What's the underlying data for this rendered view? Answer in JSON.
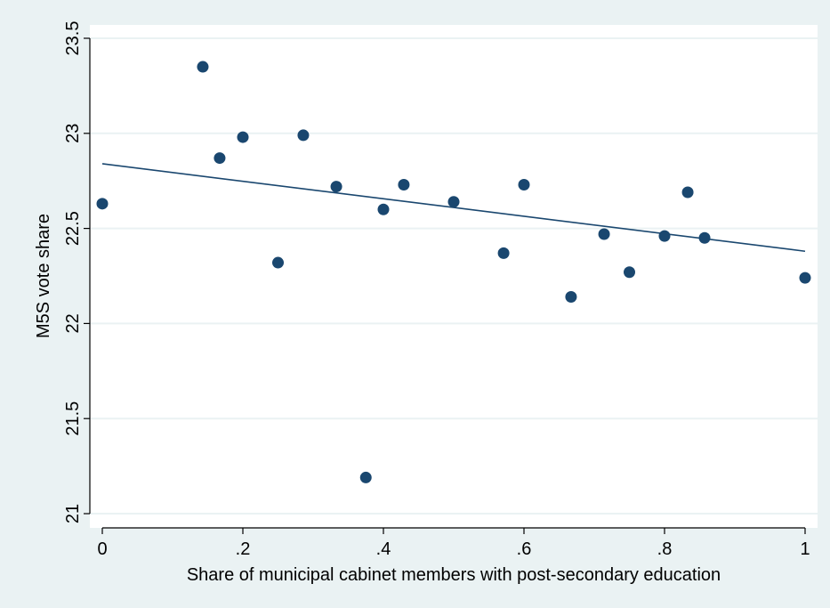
{
  "chart_data": {
    "type": "scatter",
    "title": "",
    "xlabel": "Share of municipal cabinet members with post-secondary education",
    "ylabel": "M5S vote share",
    "xlim": [
      0,
      1
    ],
    "ylim": [
      21,
      23.5
    ],
    "x_ticks": [
      0,
      0.2,
      0.4,
      0.6,
      0.8,
      1
    ],
    "x_tick_labels": [
      "0",
      ".2",
      ".4",
      ".6",
      ".8",
      "1"
    ],
    "y_ticks": [
      21,
      21.5,
      22,
      22.5,
      23,
      23.5
    ],
    "y_tick_labels": [
      "21",
      "21.5",
      "22",
      "22.5",
      "23",
      "23.5"
    ],
    "grid": "horizontal",
    "legend": "none",
    "colors": {
      "marker": "#1a476f",
      "fit_line": "#1a476f",
      "plot_bg": "#ffffff",
      "outer_bg": "#eaf2f3",
      "grid": "#eaf2f3"
    },
    "series": [
      {
        "kind": "points",
        "x": [
          0,
          0.143,
          0.167,
          0.2,
          0.25,
          0.286,
          0.333,
          0.375,
          0.4,
          0.429,
          0.5,
          0.571,
          0.6,
          0.667,
          0.714,
          0.75,
          0.8,
          0.833,
          0.857,
          1
        ],
        "y": [
          22.63,
          23.35,
          22.87,
          22.98,
          22.32,
          22.99,
          22.72,
          21.19,
          22.6,
          22.73,
          22.64,
          22.37,
          22.73,
          22.14,
          22.47,
          22.27,
          22.46,
          22.69,
          22.45,
          22.24
        ]
      },
      {
        "kind": "fit",
        "x": [
          0,
          1
        ],
        "y": [
          22.84,
          22.38
        ]
      }
    ]
  }
}
